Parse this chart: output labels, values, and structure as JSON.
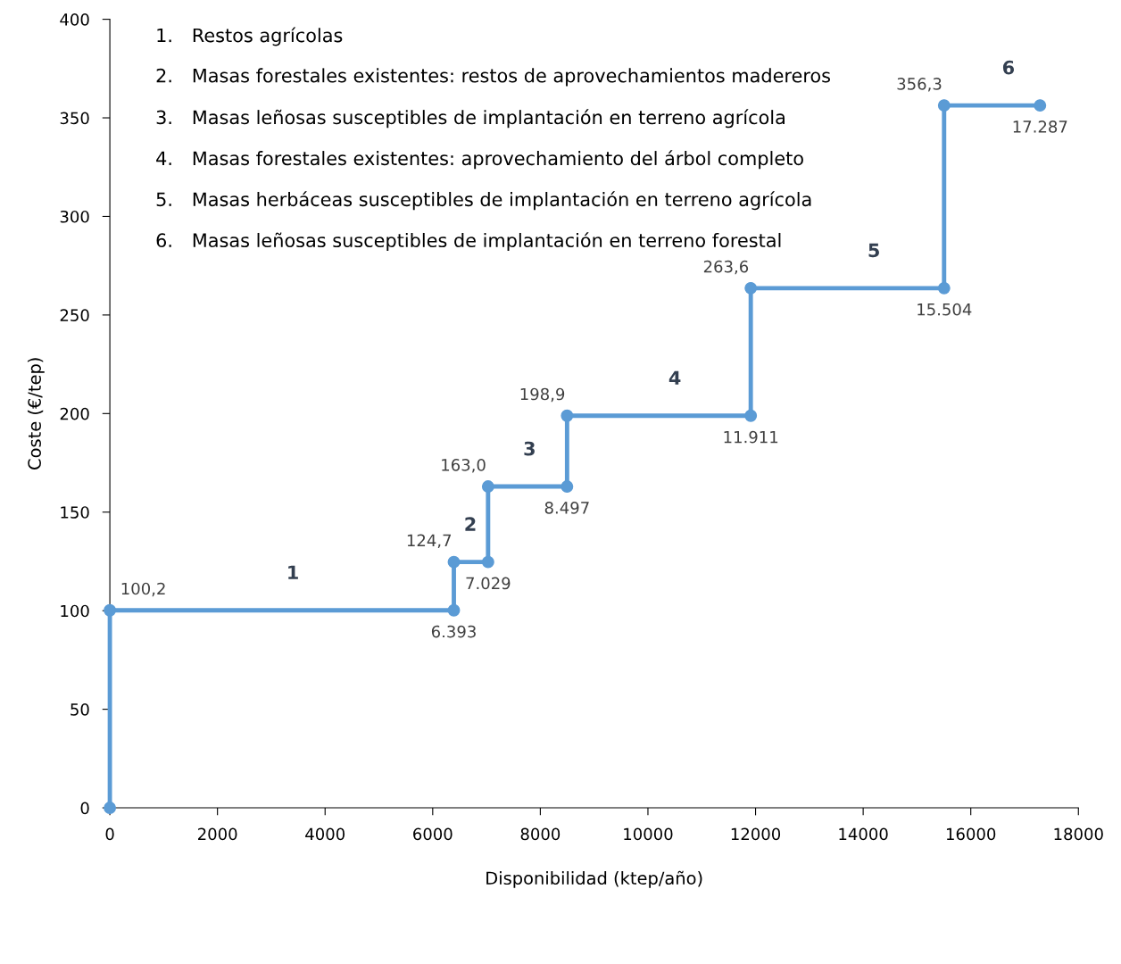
{
  "chart_data": {
    "type": "line",
    "xlabel": "Disponibilidad (ktep/año)",
    "ylabel": "Coste (€/tep)",
    "xlim": [
      0,
      18000
    ],
    "xticks": [
      0,
      2000,
      4000,
      6000,
      8000,
      10000,
      12000,
      14000,
      16000,
      18000
    ],
    "ylim": [
      0,
      400
    ],
    "yticks": [
      0,
      50,
      100,
      150,
      200,
      250,
      300,
      350,
      400
    ],
    "grid": false,
    "marker": "circle",
    "line_style": "solid",
    "series": [
      {
        "color": "#5b9bd5",
        "x": [
          0,
          0,
          6393,
          6393,
          7029,
          7029,
          8497,
          8497,
          11911,
          11911,
          15504,
          15504,
          17287
        ],
        "values": [
          0,
          100.2,
          100.2,
          124.7,
          124.7,
          163.0,
          163.0,
          198.9,
          198.9,
          263.6,
          263.6,
          356.3,
          356.3
        ],
        "value_labels": [
          null,
          "100,2",
          null,
          "124,7",
          null,
          "163,0",
          null,
          "198,9",
          null,
          "263,6",
          null,
          "356,3",
          null
        ]
      }
    ],
    "annotations": [
      "1. Restos agrícolas",
      "2. Masas forestales existentes: restos de aprovechamientos madereros",
      "3. Masas leñosas susceptibles de implantación en terreno agrícola",
      "4. Masas forestales existentes: aprovechamiento del árbol completo",
      "5. Masas herbáceas susceptibles de implantación en terreno agrícola",
      "6. Masas leñosas susceptibles de implantación en terreno forestal",
      {
        "text": "1",
        "x": 3400,
        "y": 100.2
      },
      {
        "text": "2",
        "x": 6700,
        "y": 124.7
      },
      {
        "text": "3",
        "x": 7800,
        "y": 163.0
      },
      {
        "text": "4",
        "x": 10500,
        "y": 198.9
      },
      {
        "text": "5",
        "x": 14200,
        "y": 263.6
      },
      {
        "text": "6",
        "x": 16700,
        "y": 356.3
      },
      {
        "text": "6.393",
        "x": 6393,
        "y": 100.2
      },
      {
        "text": "7.029",
        "x": 7029,
        "y": 124.7
      },
      {
        "text": "8.497",
        "x": 8497,
        "y": 163.0
      },
      {
        "text": "11.911",
        "x": 11911,
        "y": 198.9
      },
      {
        "text": "15.504",
        "x": 15504,
        "y": 263.6
      },
      {
        "text": "17.287",
        "x": 17287,
        "y": 356.3
      }
    ]
  }
}
